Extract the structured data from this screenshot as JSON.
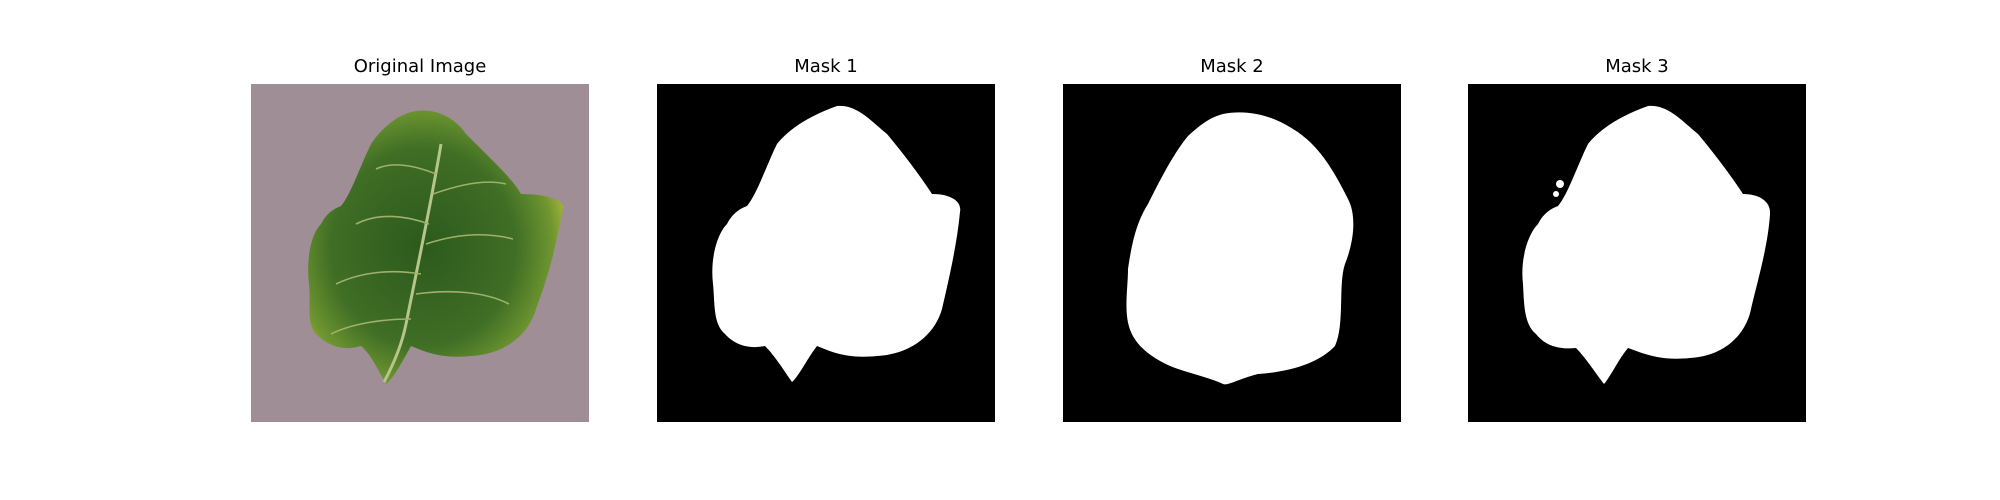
{
  "panels": [
    {
      "title": "Original Image"
    },
    {
      "title": "Mask 1"
    },
    {
      "title": "Mask 2"
    },
    {
      "title": "Mask 3"
    }
  ],
  "colors": {
    "background": "#a08e96",
    "leaf_dark": "#2f5a1f",
    "leaf_mid": "#4f7d2e",
    "leaf_light": "#a9b83a",
    "mask_bg": "#000000",
    "mask_fg": "#ffffff"
  }
}
